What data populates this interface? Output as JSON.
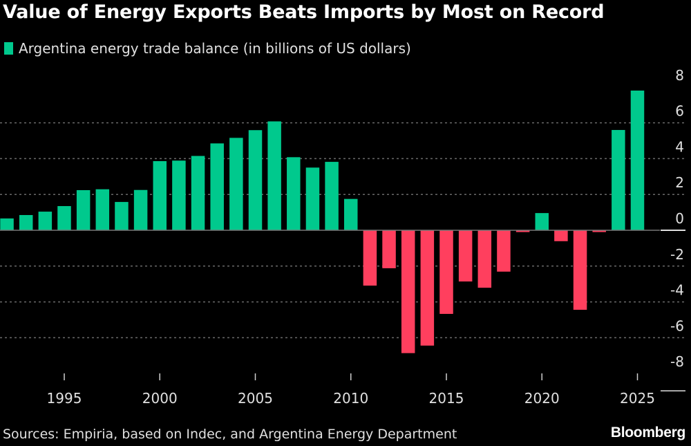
{
  "chart_data": {
    "type": "bar",
    "title": "Value of Energy Exports Beats Imports by Most on Record",
    "legend": [
      {
        "label": "Argentina energy trade balance (in billions of US dollars)",
        "color": "#00c98d"
      }
    ],
    "legend_position": "top-left",
    "positive_color": "#00c98d",
    "negative_color": "#ff3f5e",
    "xlabel": "",
    "ylabel": "",
    "x": [
      1992,
      1993,
      1994,
      1995,
      1996,
      1997,
      1998,
      1999,
      2000,
      2001,
      2002,
      2003,
      2004,
      2005,
      2006,
      2007,
      2008,
      2009,
      2010,
      2011,
      2012,
      2013,
      2014,
      2015,
      2016,
      2017,
      2018,
      2019,
      2020,
      2021,
      2022,
      2023,
      2024,
      2025
    ],
    "values": [
      0.66,
      0.85,
      1.04,
      1.35,
      2.24,
      2.29,
      1.58,
      2.25,
      3.86,
      3.89,
      4.15,
      4.85,
      5.16,
      5.59,
      6.08,
      4.08,
      3.5,
      3.82,
      1.75,
      -3.09,
      -2.12,
      -6.86,
      -6.44,
      -4.67,
      -2.86,
      -3.21,
      -2.31,
      -0.1,
      0.96,
      -0.61,
      -4.44,
      -0.1,
      5.6,
      7.8
    ],
    "xticks": [
      "1995",
      "2000",
      "2005",
      "2010",
      "2015",
      "2020",
      "2025"
    ],
    "xtick_values": [
      1995,
      2000,
      2005,
      2010,
      2015,
      2020,
      2025
    ],
    "yticks": [
      "8",
      "6",
      "4",
      "2",
      "0",
      "-2",
      "-4",
      "-6",
      "-8"
    ],
    "ytick_values": [
      8,
      6,
      4,
      2,
      0,
      -2,
      -4,
      -6,
      -8
    ],
    "ylim": [
      -8,
      8
    ],
    "xlim": [
      1991.65,
      2026.5
    ],
    "grid": true,
    "y_axis_side": "right",
    "source": "Sources: Empiria, based on Indec, and Argentina Energy Department"
  },
  "branding": {
    "logo": "Bloomberg"
  }
}
